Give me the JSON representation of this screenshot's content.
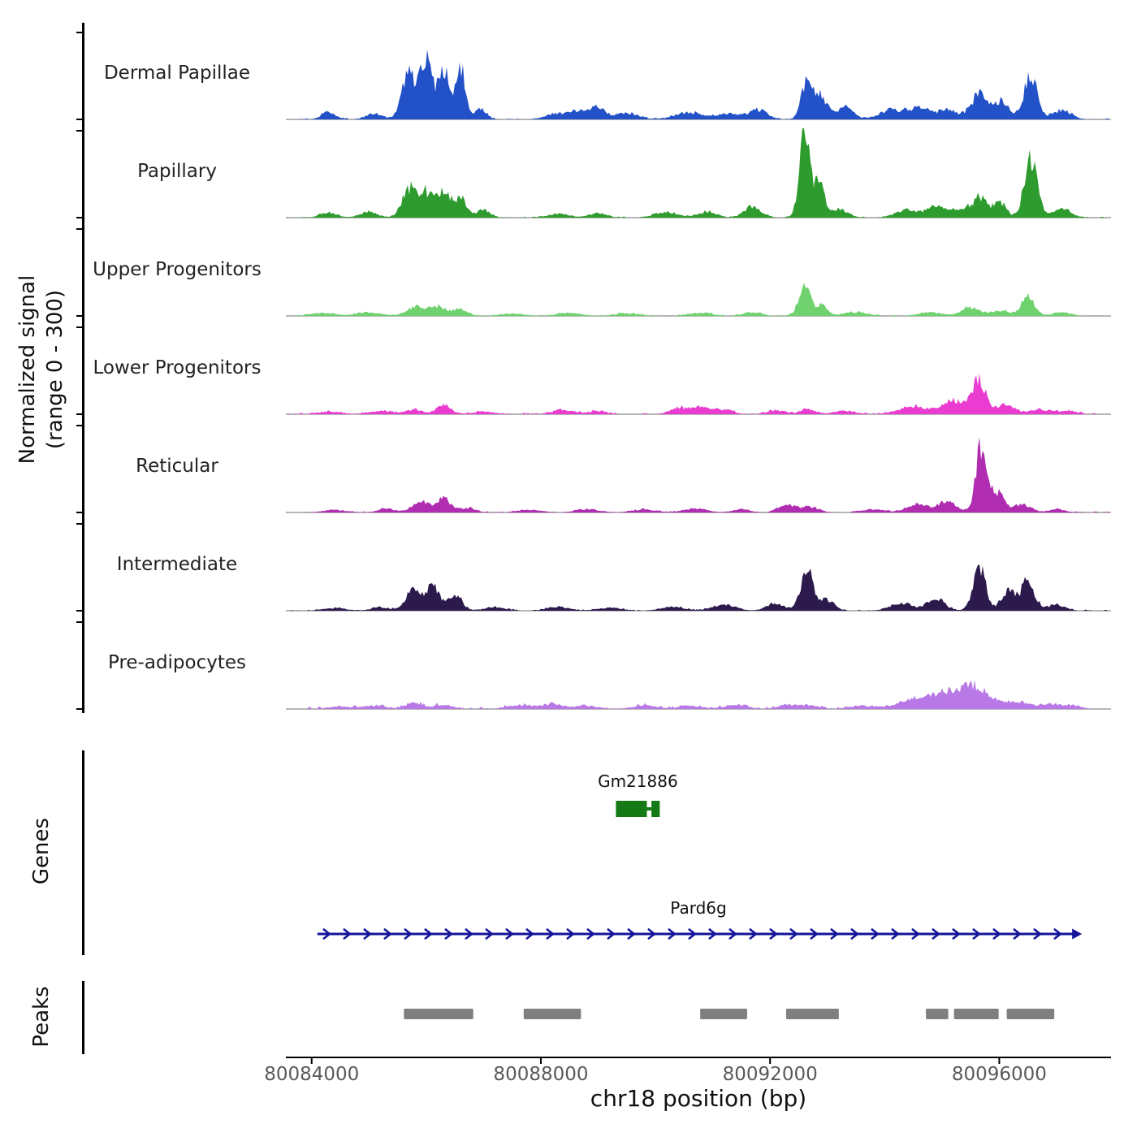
{
  "sections": {
    "signal_label_line1": "Normalized signal",
    "signal_label_line2": "(range 0 - 300)",
    "genes_label": "Genes",
    "peaks_label": "Peaks"
  },
  "chart_data": {
    "type": "area",
    "title": "",
    "xlabel": "chr18 position (bp)",
    "ylabel": "Normalized signal (range 0 - 300)",
    "ylim": [
      0,
      300
    ],
    "region": {
      "chrom": "chr18",
      "start": 80083550,
      "end": 80097950
    },
    "x_ticks": [
      {
        "bp": 80084000,
        "label": "80084000"
      },
      {
        "bp": 80088000,
        "label": "80088000"
      },
      {
        "bp": 80092000,
        "label": "80092000"
      },
      {
        "bp": 80096000,
        "label": "80096000"
      }
    ],
    "series": [
      {
        "name": "Dermal Papillae",
        "color": "#2351c8",
        "noise": 1.0,
        "peaks": [
          [
            80084300,
            120,
            25
          ],
          [
            80085100,
            150,
            18
          ],
          [
            80085700,
            120,
            150
          ],
          [
            80086000,
            100,
            205
          ],
          [
            80086300,
            90,
            165
          ],
          [
            80086600,
            80,
            180
          ],
          [
            80086950,
            100,
            35
          ],
          [
            80088300,
            200,
            20
          ],
          [
            80088700,
            150,
            25
          ],
          [
            80089000,
            120,
            38
          ],
          [
            80089500,
            200,
            20
          ],
          [
            80090600,
            250,
            22
          ],
          [
            80091300,
            200,
            20
          ],
          [
            80091800,
            150,
            30
          ],
          [
            80092650,
            100,
            125
          ],
          [
            80092900,
            100,
            70
          ],
          [
            80093300,
            150,
            40
          ],
          [
            80094100,
            200,
            30
          ],
          [
            80094600,
            200,
            38
          ],
          [
            80095100,
            150,
            30
          ],
          [
            80095650,
            150,
            80
          ],
          [
            80096050,
            120,
            60
          ],
          [
            80096550,
            120,
            140
          ],
          [
            80097100,
            150,
            30
          ]
        ]
      },
      {
        "name": "Papillary",
        "color": "#2e9b2e",
        "noise": 1.0,
        "peaks": [
          [
            80084300,
            150,
            15
          ],
          [
            80085000,
            150,
            18
          ],
          [
            80085700,
            120,
            95
          ],
          [
            80086000,
            120,
            80
          ],
          [
            80086300,
            110,
            88
          ],
          [
            80086600,
            100,
            70
          ],
          [
            80087000,
            120,
            25
          ],
          [
            80088300,
            200,
            12
          ],
          [
            80089000,
            150,
            15
          ],
          [
            80090200,
            200,
            18
          ],
          [
            80090900,
            150,
            20
          ],
          [
            80091700,
            150,
            35
          ],
          [
            80092600,
            90,
            270
          ],
          [
            80092850,
            90,
            110
          ],
          [
            80093200,
            150,
            30
          ],
          [
            80094400,
            200,
            25
          ],
          [
            80094900,
            150,
            35
          ],
          [
            80095300,
            150,
            30
          ],
          [
            80095650,
            120,
            65
          ],
          [
            80096000,
            120,
            50
          ],
          [
            80096550,
            110,
            200
          ],
          [
            80097100,
            150,
            30
          ]
        ]
      },
      {
        "name": "Upper Progenitors",
        "color": "#6fd26f",
        "noise": 0.9,
        "peaks": [
          [
            80084200,
            200,
            10
          ],
          [
            80085000,
            200,
            12
          ],
          [
            80085800,
            150,
            28
          ],
          [
            80086200,
            150,
            30
          ],
          [
            80086600,
            120,
            22
          ],
          [
            80087500,
            200,
            8
          ],
          [
            80088500,
            200,
            10
          ],
          [
            80089500,
            200,
            8
          ],
          [
            80090800,
            200,
            10
          ],
          [
            80091700,
            150,
            12
          ],
          [
            80092600,
            100,
            95
          ],
          [
            80092900,
            100,
            35
          ],
          [
            80093500,
            200,
            12
          ],
          [
            80094800,
            200,
            12
          ],
          [
            80095500,
            150,
            28
          ],
          [
            80096000,
            150,
            18
          ],
          [
            80096500,
            120,
            60
          ],
          [
            80097100,
            150,
            12
          ]
        ]
      },
      {
        "name": "Lower Progenitors",
        "color": "#ea3cd0",
        "noise": 1.3,
        "peaks": [
          [
            80084300,
            200,
            8
          ],
          [
            80085200,
            200,
            10
          ],
          [
            80085800,
            150,
            15
          ],
          [
            80086300,
            120,
            28
          ],
          [
            80087000,
            200,
            8
          ],
          [
            80088400,
            200,
            12
          ],
          [
            80089000,
            150,
            10
          ],
          [
            80090400,
            150,
            20
          ],
          [
            80090800,
            150,
            25
          ],
          [
            80091200,
            150,
            15
          ],
          [
            80092100,
            150,
            12
          ],
          [
            80092650,
            120,
            18
          ],
          [
            80093300,
            200,
            10
          ],
          [
            80094500,
            250,
            25
          ],
          [
            80095200,
            200,
            45
          ],
          [
            80095650,
            120,
            110
          ],
          [
            80096100,
            150,
            30
          ],
          [
            80096700,
            200,
            15
          ],
          [
            80097200,
            150,
            10
          ]
        ]
      },
      {
        "name": "Reticular",
        "color": "#b02cb0",
        "noise": 1.0,
        "peaks": [
          [
            80084400,
            200,
            8
          ],
          [
            80085300,
            150,
            12
          ],
          [
            80085900,
            150,
            35
          ],
          [
            80086300,
            120,
            45
          ],
          [
            80086700,
            150,
            15
          ],
          [
            80087800,
            200,
            8
          ],
          [
            80088800,
            200,
            10
          ],
          [
            80089800,
            200,
            10
          ],
          [
            80090700,
            200,
            12
          ],
          [
            80091500,
            150,
            10
          ],
          [
            80092300,
            150,
            25
          ],
          [
            80092700,
            150,
            18
          ],
          [
            80093800,
            200,
            10
          ],
          [
            80094600,
            200,
            25
          ],
          [
            80095100,
            150,
            35
          ],
          [
            80095700,
            100,
            230
          ],
          [
            80096000,
            100,
            60
          ],
          [
            80096400,
            150,
            25
          ],
          [
            80097000,
            150,
            10
          ]
        ]
      },
      {
        "name": "Intermediate",
        "color": "#2d1a4d",
        "noise": 1.0,
        "peaks": [
          [
            80084400,
            200,
            8
          ],
          [
            80085200,
            150,
            12
          ],
          [
            80085750,
            120,
            65
          ],
          [
            80086100,
            120,
            80
          ],
          [
            80086500,
            120,
            55
          ],
          [
            80087200,
            200,
            10
          ],
          [
            80088300,
            200,
            12
          ],
          [
            80089200,
            200,
            10
          ],
          [
            80090300,
            200,
            12
          ],
          [
            80091200,
            200,
            20
          ],
          [
            80092100,
            150,
            25
          ],
          [
            80092650,
            110,
            130
          ],
          [
            80093000,
            120,
            35
          ],
          [
            80094300,
            200,
            25
          ],
          [
            80094900,
            150,
            40
          ],
          [
            80095650,
            110,
            140
          ],
          [
            80096150,
            120,
            60
          ],
          [
            80096500,
            120,
            95
          ],
          [
            80097000,
            150,
            20
          ]
        ]
      },
      {
        "name": "Pre-adipocytes",
        "color": "#b879e6",
        "noise": 2.0,
        "peaks": [
          [
            80084500,
            200,
            8
          ],
          [
            80085100,
            200,
            10
          ],
          [
            80085800,
            150,
            18
          ],
          [
            80086300,
            150,
            15
          ],
          [
            80087600,
            200,
            12
          ],
          [
            80088200,
            200,
            15
          ],
          [
            80088800,
            200,
            10
          ],
          [
            80089800,
            200,
            12
          ],
          [
            80090600,
            200,
            10
          ],
          [
            80091400,
            200,
            12
          ],
          [
            80092300,
            150,
            15
          ],
          [
            80092700,
            150,
            12
          ],
          [
            80093600,
            200,
            10
          ],
          [
            80094500,
            300,
            30
          ],
          [
            80095100,
            250,
            50
          ],
          [
            80095500,
            150,
            65
          ],
          [
            80095800,
            150,
            40
          ],
          [
            80096300,
            200,
            25
          ],
          [
            80096900,
            200,
            15
          ],
          [
            80097300,
            150,
            10
          ]
        ]
      }
    ],
    "genes": [
      {
        "name": "Gm21886",
        "color": "#157a15",
        "glyph": "boxes",
        "exons": [
          [
            80089310,
            80089850
          ],
          [
            80089930,
            80090075
          ]
        ]
      },
      {
        "name": "Pard6g",
        "color": "#14149a",
        "glyph": "arrow-line",
        "start": 80084100,
        "end": 80097400,
        "strand": "+"
      }
    ],
    "peaks_track": {
      "color": "#7f7f7f",
      "intervals": [
        [
          80085610,
          80086820
        ],
        [
          80087700,
          80088700
        ],
        [
          80090780,
          80091600
        ],
        [
          80092280,
          80093200
        ],
        [
          80094720,
          80095110
        ],
        [
          80095210,
          80095990
        ],
        [
          80096130,
          80096960
        ]
      ]
    }
  }
}
